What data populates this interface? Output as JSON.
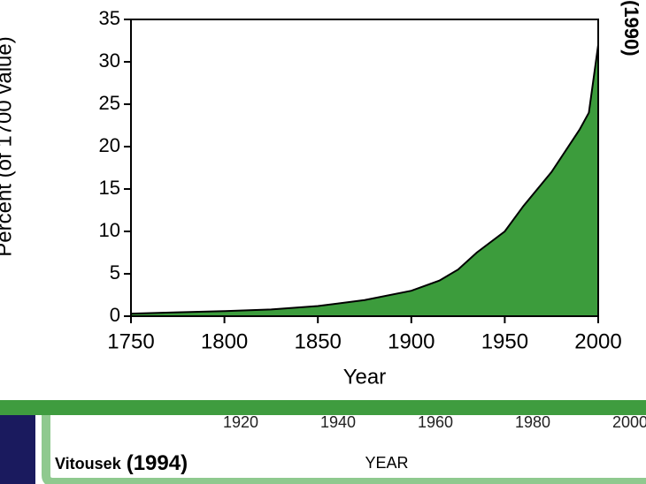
{
  "chart_data": {
    "type": "area",
    "y_label": "Percent (of 1700 value)",
    "x_label": "Year",
    "x": [
      1750,
      1775,
      1800,
      1825,
      1850,
      1875,
      1900,
      1915,
      1925,
      1935,
      1950,
      1960,
      1975,
      1990,
      1995,
      2000
    ],
    "values": [
      0.3,
      0.45,
      0.6,
      0.8,
      1.2,
      1.9,
      3,
      4.2,
      5.5,
      7.5,
      10,
      13,
      17,
      22,
      24,
      32
    ],
    "color": "#3c9c3c",
    "xlim": [
      1750,
      2000
    ],
    "ylim": [
      0,
      35
    ],
    "xticks": [
      1750,
      1800,
      1850,
      1900,
      1950,
      2000
    ],
    "yticks": [
      0,
      5,
      10,
      15,
      20,
      25,
      30,
      35
    ]
  },
  "background_chart": {
    "xticks": [
      1920,
      1940,
      1960,
      1980,
      2000
    ],
    "x_label": "YEAR"
  },
  "citation": {
    "author": "Vitousek",
    "year": "(1994)"
  },
  "side_text": "(1990)"
}
